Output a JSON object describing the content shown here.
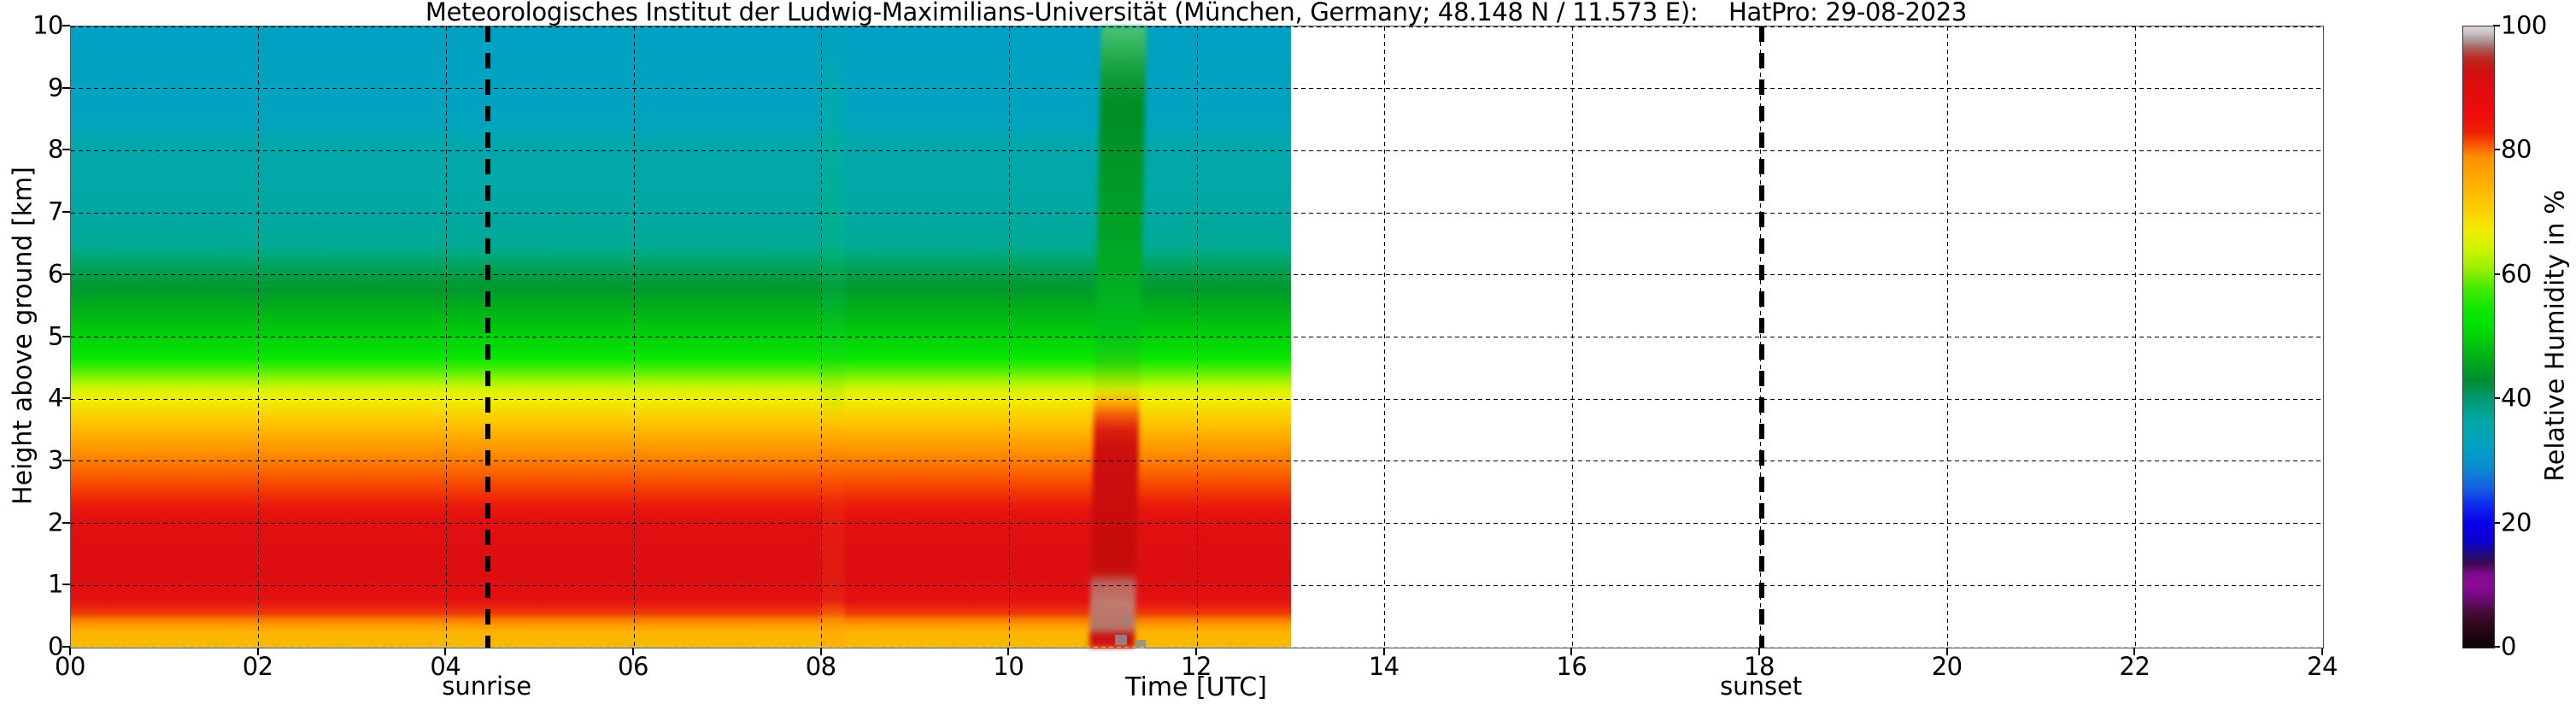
{
  "title": "Meteorologisches Institut der Ludwig-Maximilians-Universität (München, Germany; 48.148 N / 11.573 E):    HatPro: 29-08-2023",
  "axes": {
    "xlabel": "Time [UTC]",
    "ylabel": "Height above ground [km]",
    "x_ticks": [
      "00",
      "02",
      "04",
      "06",
      "08",
      "10",
      "12",
      "14",
      "16",
      "18",
      "20",
      "22",
      "24"
    ],
    "y_ticks": [
      "0",
      "1",
      "2",
      "3",
      "4",
      "5",
      "6",
      "7",
      "8",
      "9",
      "10"
    ]
  },
  "colorbar": {
    "label": "Relative Humidity in %",
    "ticks": [
      "0",
      "20",
      "40",
      "60",
      "80",
      "100"
    ]
  },
  "annotations": {
    "sunrise": {
      "label": "sunrise",
      "time_utc": 4.44
    },
    "sunset": {
      "label": "sunset",
      "time_utc": 18.02
    }
  },
  "chart_data": {
    "type": "heatmap",
    "title": "Meteorologisches Institut der Ludwig-Maximilians-Universität (München, Germany; 48.148 N / 11.573 E):    HatPro: 29-08-2023",
    "instrument": "HatPro",
    "date": "29-08-2023",
    "xlabel": "Time [UTC]",
    "ylabel": "Height above ground [km]",
    "colorbar_label": "Relative Humidity in %",
    "x_range_utc": [
      0,
      24
    ],
    "y_range_km": [
      0,
      10
    ],
    "colorbar_range_percent": [
      0,
      100
    ],
    "data_coverage_utc": [
      0,
      13
    ],
    "grid": true,
    "sunrise_utc": 4.44,
    "sunset_utc": 18.02,
    "humidity_profile_background": [
      {
        "km": 0.0,
        "rh": 73
      },
      {
        "km": 0.3,
        "rh": 80
      },
      {
        "km": 0.5,
        "rh": 86
      },
      {
        "km": 1.0,
        "rh": 88
      },
      {
        "km": 2.0,
        "rh": 88
      },
      {
        "km": 2.5,
        "rh": 85
      },
      {
        "km": 3.0,
        "rh": 79
      },
      {
        "km": 3.5,
        "rh": 74
      },
      {
        "km": 4.0,
        "rh": 66
      },
      {
        "km": 4.3,
        "rh": 62
      },
      {
        "km": 4.6,
        "rh": 58
      },
      {
        "km": 5.0,
        "rh": 53
      },
      {
        "km": 5.5,
        "rh": 49
      },
      {
        "km": 6.0,
        "rh": 45
      },
      {
        "km": 6.3,
        "rh": 41
      },
      {
        "km": 7.0,
        "rh": 37
      },
      {
        "km": 8.0,
        "rh": 35
      },
      {
        "km": 9.0,
        "rh": 33
      },
      {
        "km": 10.0,
        "rh": 32
      }
    ],
    "plume_event": {
      "start_utc": 11.0,
      "end_utc": 11.45,
      "description": "Deep moist column: RH > 90% below 4 km, ~100% (grey) near surface 0.1–0.9 km, elevated RH 45–60% (green) reaching 10 km",
      "surface_rh_max": 100
    },
    "secondary_feature": {
      "time_utc": 8.1,
      "description": "Faint moist streak through the whole column with slightly enhanced RH near the surface"
    },
    "field_gradient_stops": [
      [
        0,
        "#00a0c2"
      ],
      [
        16,
        "#00a4be"
      ],
      [
        18,
        "#00a8ae"
      ],
      [
        30,
        "#00a8a2"
      ],
      [
        35,
        "#00aa96"
      ],
      [
        36.5,
        "#00aa80"
      ],
      [
        38.5,
        "#00a45e"
      ],
      [
        40.5,
        "#009c40"
      ],
      [
        42.5,
        "#009a2c"
      ],
      [
        45,
        "#00ac1c"
      ],
      [
        48,
        "#00c20e"
      ],
      [
        51,
        "#00d806"
      ],
      [
        53.5,
        "#0ae800"
      ],
      [
        55.5,
        "#52f000"
      ],
      [
        57,
        "#9cf400"
      ],
      [
        58.5,
        "#d8f400"
      ],
      [
        60,
        "#f0ee00"
      ],
      [
        62,
        "#f8d800"
      ],
      [
        64,
        "#fec200"
      ],
      [
        66,
        "#ffac00"
      ],
      [
        68,
        "#ff9600"
      ],
      [
        70,
        "#ff7e00"
      ],
      [
        72,
        "#fb6000"
      ],
      [
        74,
        "#f54400"
      ],
      [
        76,
        "#ee2808"
      ],
      [
        78,
        "#e6140e"
      ],
      [
        80,
        "#e01010"
      ],
      [
        88,
        "#dd0e10"
      ],
      [
        92.5,
        "#e41111"
      ],
      [
        94.5,
        "#ee3a06"
      ],
      [
        95.5,
        "#fa7a00"
      ],
      [
        96.5,
        "#ff9c00"
      ],
      [
        97.5,
        "#fdb400"
      ],
      [
        100,
        "#f6ba00"
      ]
    ],
    "plume_gradient_stops": [
      [
        0,
        "#4cc276"
      ],
      [
        4,
        "#2cb054"
      ],
      [
        8,
        "#109c36"
      ],
      [
        13,
        "#008c24"
      ],
      [
        18,
        "#009226"
      ],
      [
        30,
        "#009e28"
      ],
      [
        42,
        "#00ae22"
      ],
      [
        50,
        "#00c517"
      ],
      [
        54,
        "#20d60a"
      ],
      [
        56.5,
        "#7ce400"
      ],
      [
        58.5,
        "#d8e800"
      ],
      [
        60.5,
        "#ffae00"
      ],
      [
        62.5,
        "#f25c0a"
      ],
      [
        65,
        "#dd1f10"
      ],
      [
        68,
        "#cc0e0e"
      ],
      [
        86,
        "#c60b0b"
      ],
      [
        88,
        "#c7140f"
      ],
      [
        89.5,
        "#bd6058"
      ],
      [
        93,
        "#c07a6e"
      ],
      [
        97,
        "#b5746c"
      ],
      [
        98,
        "#cc1210"
      ],
      [
        100,
        "#d41414"
      ]
    ],
    "streak_gradient_stops": [
      [
        0,
        "rgba(0,180,120,0)"
      ],
      [
        10,
        "rgba(0,190,130,0.25)"
      ],
      [
        45,
        "rgba(0,200,100,0.22)"
      ],
      [
        60,
        "rgba(120,220,0,0.15)"
      ],
      [
        63,
        "rgba(255,200,0,0.12)"
      ],
      [
        70,
        "rgba(255,120,0,0.10)"
      ],
      [
        92,
        "rgba(255,120,40,0.12)"
      ],
      [
        96,
        "rgba(255,160,0,0.45)"
      ],
      [
        100,
        "rgba(255,170,0,0.5)"
      ]
    ],
    "colorbar_gradient_stops": [
      [
        0,
        "#0e0106"
      ],
      [
        2,
        "#1e0512"
      ],
      [
        4,
        "#33081f"
      ],
      [
        6,
        "#4a0c3e"
      ],
      [
        8,
        "#6e0a78"
      ],
      [
        10,
        "#8c0a94"
      ],
      [
        12,
        "#7c0a8c"
      ],
      [
        13.5,
        "#3c0a50"
      ],
      [
        15,
        "#200a80"
      ],
      [
        17,
        "#0c00cc"
      ],
      [
        20,
        "#0a00e8"
      ],
      [
        23,
        "#0c2cec"
      ],
      [
        26,
        "#1464e0"
      ],
      [
        29,
        "#0c8cd0"
      ],
      [
        32,
        "#00a0c4"
      ],
      [
        36,
        "#00a8a8"
      ],
      [
        40,
        "#009a74"
      ],
      [
        43,
        "#008c30"
      ],
      [
        46,
        "#00a81c"
      ],
      [
        49,
        "#00c80c"
      ],
      [
        52,
        "#00e202"
      ],
      [
        55,
        "#14e800"
      ],
      [
        58,
        "#48ea00"
      ],
      [
        61,
        "#9af000"
      ],
      [
        64,
        "#ccf200"
      ],
      [
        67,
        "#f0ec00"
      ],
      [
        70,
        "#fbd400"
      ],
      [
        73,
        "#ffbc00"
      ],
      [
        76,
        "#ffa600"
      ],
      [
        79,
        "#fc9000"
      ],
      [
        81,
        "#f85400"
      ],
      [
        83,
        "#f01e06"
      ],
      [
        86,
        "#ee0c0c"
      ],
      [
        91,
        "#dc0d0e"
      ],
      [
        93,
        "#cc1210"
      ],
      [
        95,
        "#bc2c24"
      ],
      [
        96.5,
        "#a86058"
      ],
      [
        98,
        "#b0a0a0"
      ],
      [
        99,
        "#ccc4c4"
      ],
      [
        100,
        "#dcd6d6"
      ]
    ]
  }
}
